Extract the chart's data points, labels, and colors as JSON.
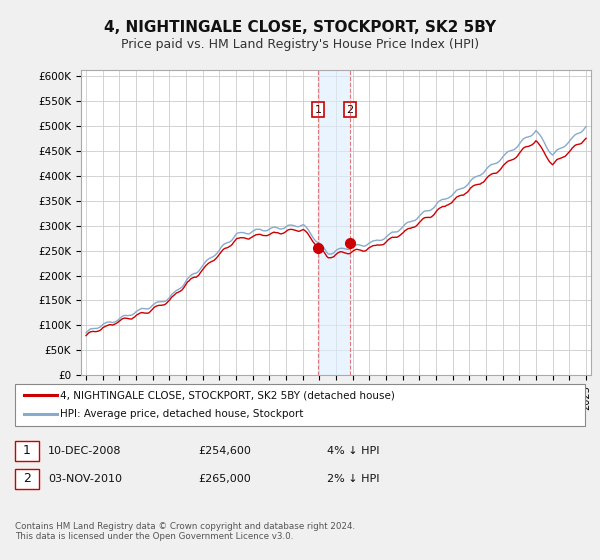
{
  "title": "4, NIGHTINGALE CLOSE, STOCKPORT, SK2 5BY",
  "subtitle": "Price paid vs. HM Land Registry's House Price Index (HPI)",
  "ylim": [
    0,
    612500
  ],
  "yticks": [
    0,
    50000,
    100000,
    150000,
    200000,
    250000,
    300000,
    350000,
    400000,
    450000,
    500000,
    550000,
    600000
  ],
  "ytick_labels": [
    "£0",
    "£50K",
    "£100K",
    "£150K",
    "£200K",
    "£250K",
    "£300K",
    "£350K",
    "£400K",
    "£450K",
    "£500K",
    "£550K",
    "£600K"
  ],
  "background_color": "#f0f0f0",
  "plot_bg_color": "#ffffff",
  "grid_color": "#cccccc",
  "line1_color": "#cc0000",
  "line2_color": "#88aacc",
  "line1_label": "4, NIGHTINGALE CLOSE, STOCKPORT, SK2 5BY (detached house)",
  "line2_label": "HPI: Average price, detached house, Stockport",
  "transaction1_date": 2008.917,
  "transaction1_price": 254600,
  "transaction2_date": 2010.833,
  "transaction2_price": 265000,
  "footnote": "Contains HM Land Registry data © Crown copyright and database right 2024.\nThis data is licensed under the Open Government Licence v3.0.",
  "xtick_years": [
    1995,
    1996,
    1997,
    1998,
    1999,
    2000,
    2001,
    2002,
    2003,
    2004,
    2005,
    2006,
    2007,
    2008,
    2009,
    2010,
    2011,
    2012,
    2013,
    2014,
    2015,
    2016,
    2017,
    2018,
    2019,
    2020,
    2021,
    2022,
    2023,
    2024,
    2025
  ]
}
